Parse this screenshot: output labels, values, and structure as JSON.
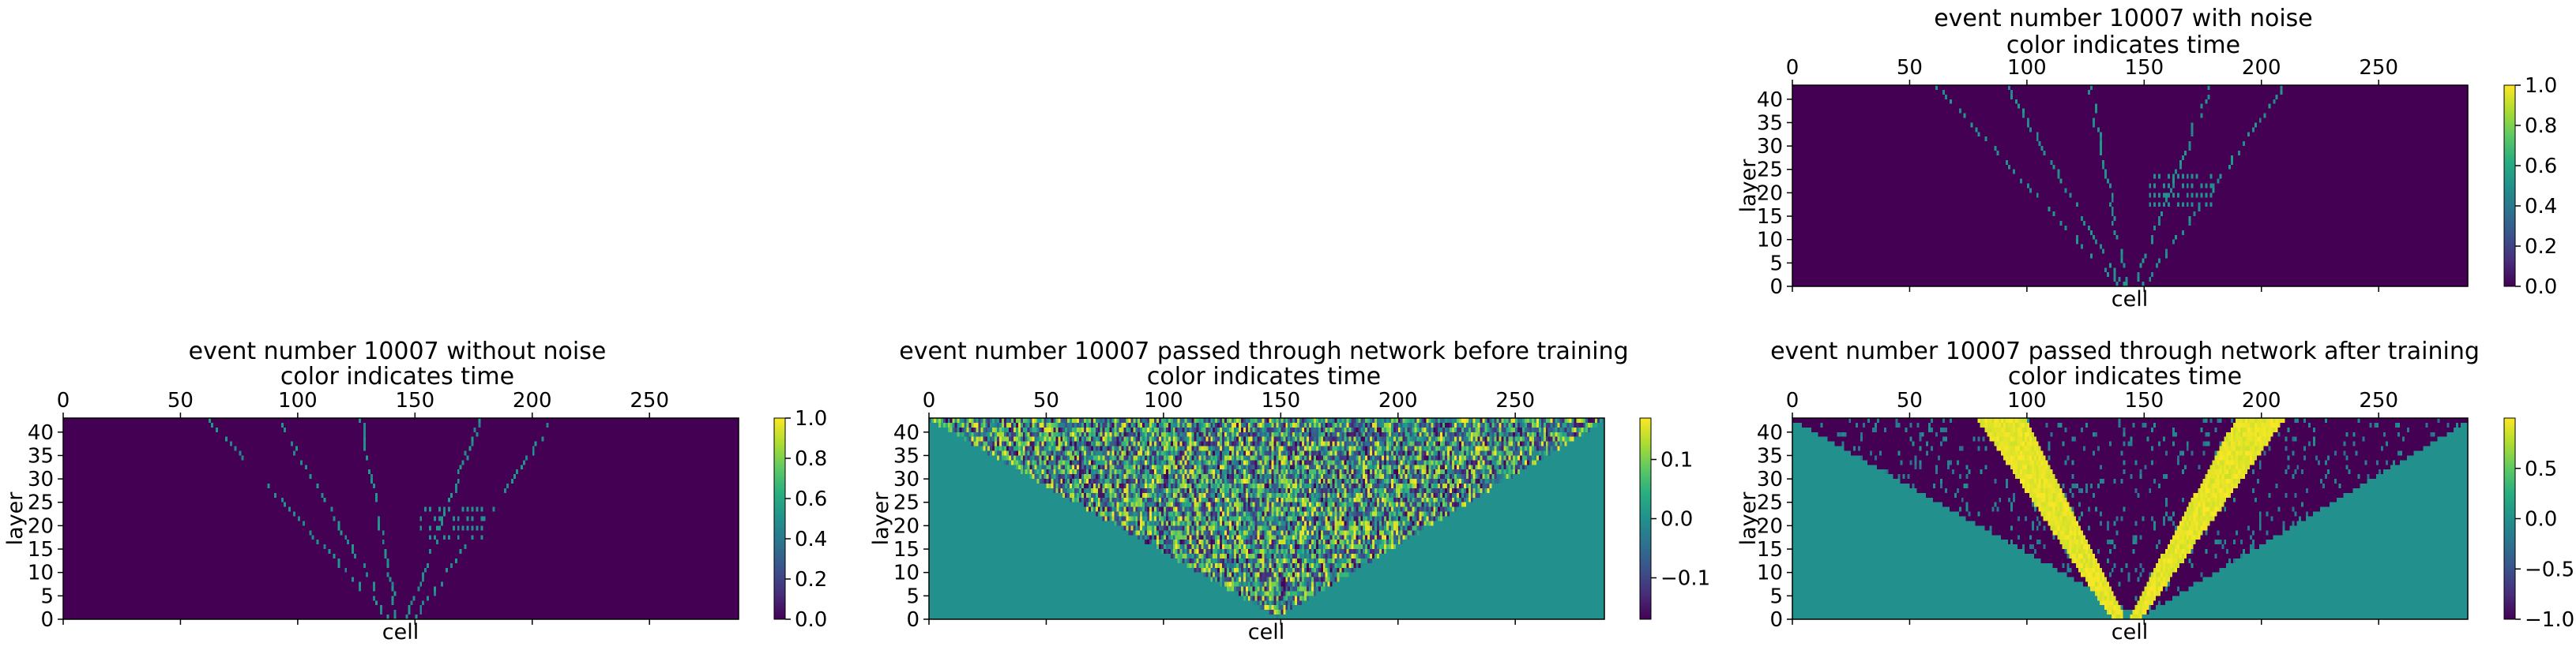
{
  "figure": {
    "panels": [
      {
        "id": "with_noise",
        "title_line1": "event number 10007 with noise",
        "title_line2": "color indicates time",
        "xlabel": "cell",
        "ylabel": "layer",
        "colorbar_ticks": [
          "0.0",
          "0.2",
          "0.4",
          "0.6",
          "0.8",
          "1.0"
        ]
      },
      {
        "id": "without_noise",
        "title_line1": "event number 10007 without noise",
        "title_line2": "color indicates time",
        "xlabel": "cell",
        "ylabel": "layer",
        "colorbar_ticks": [
          "0.0",
          "0.2",
          "0.4",
          "0.6",
          "0.8",
          "1.0"
        ]
      },
      {
        "id": "before_training",
        "title_line1": "event number 10007 passed through network before training",
        "title_line2": "color indicates time",
        "xlabel": "cell",
        "ylabel": "layer",
        "colorbar_ticks": [
          "0.1",
          "0.0",
          "−0.1"
        ]
      },
      {
        "id": "after_training",
        "title_line1": "event number 10007 passed through network after training",
        "title_line2": "color indicates time",
        "xlabel": "cell",
        "ylabel": "layer",
        "colorbar_ticks": [
          "0.5",
          "0.0",
          "−0.5",
          "−1.0"
        ]
      }
    ]
  },
  "chart_data": [
    {
      "type": "heatmap",
      "title": "event number 10007 with noise\ncolor indicates time",
      "xlabel": "cell",
      "ylabel": "layer",
      "xlim": [
        0,
        288
      ],
      "ylim": [
        0,
        43
      ],
      "xticks": [
        0,
        50,
        100,
        150,
        200,
        250
      ],
      "yticks": [
        0,
        5,
        10,
        15,
        20,
        25,
        30,
        35,
        40
      ],
      "colormap": "viridis",
      "clim": [
        0.0,
        1.0
      ],
      "colorbar_ticks": [
        0.0,
        0.2,
        0.4,
        0.6,
        0.8,
        1.0
      ],
      "background_value": 0.0,
      "hit_value_approx": 0.5,
      "tracks": [
        {
          "from": [
            138,
            0
          ],
          "to": [
            60,
            43
          ]
        },
        {
          "from": [
            140,
            0
          ],
          "to": [
            90,
            43
          ]
        },
        {
          "from": [
            142,
            0
          ],
          "to": [
            126,
            43
          ]
        },
        {
          "from": [
            146,
            0
          ],
          "to": [
            178,
            43
          ]
        },
        {
          "from": [
            150,
            0
          ],
          "to": [
            210,
            43
          ]
        }
      ],
      "clusters": [
        {
          "cells": [
            152,
            178
          ],
          "layers": [
            17,
            24
          ]
        }
      ]
    },
    {
      "type": "heatmap",
      "title": "event number 10007 without noise\ncolor indicates time",
      "xlabel": "cell",
      "ylabel": "layer",
      "xlim": [
        0,
        288
      ],
      "ylim": [
        0,
        43
      ],
      "xticks": [
        0,
        50,
        100,
        150,
        200,
        250
      ],
      "yticks": [
        0,
        5,
        10,
        15,
        20,
        25,
        30,
        35,
        40
      ],
      "colormap": "viridis",
      "clim": [
        0.0,
        1.0
      ],
      "colorbar_ticks": [
        0.0,
        0.2,
        0.4,
        0.6,
        0.8,
        1.0
      ],
      "background_value": 0.0,
      "hit_value_approx": 0.5,
      "tracks": [
        {
          "from": [
            138,
            0
          ],
          "to": [
            60,
            43
          ]
        },
        {
          "from": [
            140,
            0
          ],
          "to": [
            90,
            43
          ]
        },
        {
          "from": [
            142,
            0
          ],
          "to": [
            126,
            43
          ]
        },
        {
          "from": [
            146,
            0
          ],
          "to": [
            178,
            43
          ]
        },
        {
          "from": [
            150,
            0
          ],
          "to": [
            210,
            43
          ]
        }
      ],
      "clusters": [
        {
          "cells": [
            152,
            178
          ],
          "layers": [
            17,
            24
          ]
        }
      ]
    },
    {
      "type": "heatmap",
      "title": "event number 10007 passed through network before training\ncolor indicates time",
      "xlabel": "cell",
      "ylabel": "layer",
      "xlim": [
        0,
        288
      ],
      "ylim": [
        0,
        43
      ],
      "xticks": [
        0,
        50,
        100,
        150,
        200,
        250
      ],
      "yticks": [
        0,
        5,
        10,
        15,
        20,
        25,
        30,
        35,
        40
      ],
      "colormap": "viridis",
      "clim": [
        -0.17,
        0.17
      ],
      "colorbar_ticks": [
        0.1,
        0.0,
        -0.1
      ],
      "outside_cone_value": 0.0,
      "cone": {
        "apex_cell": 148,
        "apex_layer": 0,
        "left_edge_at_top": 0,
        "right_edge_at_top": 288
      },
      "inside_cone": "random values in [-0.17, 0.17]"
    },
    {
      "type": "heatmap",
      "title": "event number 10007 passed through network after training\ncolor indicates time",
      "xlabel": "cell",
      "ylabel": "layer",
      "xlim": [
        0,
        288
      ],
      "ylim": [
        0,
        43
      ],
      "xticks": [
        0,
        50,
        100,
        150,
        200,
        250
      ],
      "yticks": [
        0,
        5,
        10,
        15,
        20,
        25,
        30,
        35,
        40
      ],
      "colormap": "viridis",
      "clim": [
        -1.0,
        1.0
      ],
      "colorbar_ticks": [
        0.5,
        0.0,
        -0.5,
        -1.0
      ],
      "outside_cone_value": 0.0,
      "inside_cone_background": -1.0,
      "cone": {
        "apex_cell": 148,
        "apex_layer": 0,
        "left_edge_at_top": 0,
        "right_edge_at_top": 288
      },
      "high_bands": [
        {
          "from": [
            138,
            0
          ],
          "to": [
            88,
            43
          ],
          "value": 1.0
        },
        {
          "from": [
            146,
            0
          ],
          "to": [
            200,
            43
          ],
          "value": 1.0
        }
      ]
    }
  ]
}
